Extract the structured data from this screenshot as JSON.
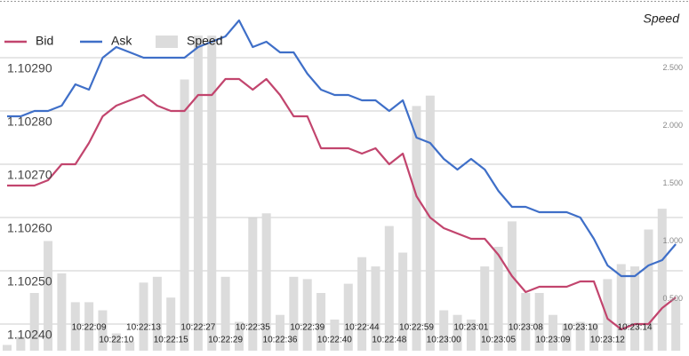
{
  "chart_data": {
    "type": "line",
    "y2_title": "Speed",
    "categories": [
      null,
      null,
      null,
      null,
      null,
      null,
      "10:22:09",
      null,
      "10:22:10",
      null,
      "10:22:13",
      null,
      "10:22:15",
      null,
      "10:22:27",
      null,
      "10:22:29",
      null,
      "10:22:35",
      null,
      "10:22:36",
      null,
      "10:22:39",
      null,
      "10:22:40",
      null,
      "10:22:44",
      null,
      "10:22:48",
      null,
      "10:22:59",
      null,
      "10:23:00",
      null,
      "10:23:01",
      null,
      "10:23:05",
      null,
      "10:23:08",
      null,
      "10:23:09",
      null,
      "10:23:10",
      null,
      "10:23:12",
      null,
      "10:23:14",
      null,
      null,
      null
    ],
    "series": [
      {
        "name": "Bid",
        "color": "#c2456e",
        "values": [
          1.10266,
          1.10266,
          1.10266,
          1.10267,
          1.1027,
          1.1027,
          1.10274,
          1.10279,
          1.10281,
          1.10282,
          1.10283,
          1.10281,
          1.1028,
          1.1028,
          1.10283,
          1.10283,
          1.10286,
          1.10286,
          1.10284,
          1.10286,
          1.10283,
          1.10279,
          1.10279,
          1.10273,
          1.10273,
          1.10273,
          1.10272,
          1.10273,
          1.1027,
          1.10272,
          1.10264,
          1.1026,
          1.10258,
          1.10257,
          1.10256,
          1.10256,
          1.10253,
          1.10249,
          1.10246,
          1.10247,
          1.10247,
          1.10247,
          1.10248,
          1.10248,
          1.10241,
          1.10239,
          1.1024,
          1.1024,
          1.10243,
          1.10245
        ]
      },
      {
        "name": "Ask",
        "color": "#3f6fc8",
        "values": [
          1.10279,
          1.10279,
          1.1028,
          1.1028,
          1.10281,
          1.10285,
          1.10284,
          1.1029,
          1.10292,
          1.10291,
          1.1029,
          1.1029,
          1.1029,
          1.1029,
          1.10292,
          1.10293,
          1.10294,
          1.10297,
          1.10292,
          1.10293,
          1.10291,
          1.10291,
          1.10287,
          1.10284,
          1.10283,
          1.10283,
          1.10282,
          1.10282,
          1.1028,
          1.10282,
          1.10275,
          1.10274,
          1.10271,
          1.10269,
          1.10271,
          1.10269,
          1.10265,
          1.10262,
          1.10262,
          1.10261,
          1.10261,
          1.10261,
          1.1026,
          1.10256,
          1.10251,
          1.10249,
          1.10249,
          1.10251,
          1.10252,
          1.10255
        ]
      },
      {
        "name": "Speed",
        "color": "#dcdcdc",
        "type": "bar",
        "axis": "y2",
        "values": [
          0.1,
          0.17,
          0.55,
          1.0,
          0.72,
          0.47,
          0.47,
          0.4,
          0.2,
          0.13,
          0.64,
          0.69,
          0.51,
          2.4,
          2.78,
          2.78,
          0.69,
          0.3,
          1.2,
          1.24,
          0.36,
          0.69,
          0.67,
          0.55,
          0.32,
          0.63,
          0.86,
          0.78,
          1.13,
          0.9,
          2.17,
          2.26,
          0.4,
          0.36,
          0.32,
          0.78,
          0.95,
          1.17,
          0.55,
          0.55,
          0.36,
          0.28,
          0.3,
          0.28,
          0.67,
          0.8,
          0.78,
          1.1,
          1.28,
          0.49
        ]
      }
    ],
    "ylim": [
      1.10235,
      1.103
    ],
    "yticks": [
      {
        "value": 1.1024,
        "label": "1.10240"
      },
      {
        "value": 1.1025,
        "label": "1.10250"
      },
      {
        "value": 1.1026,
        "label": "1.10260"
      },
      {
        "value": 1.1027,
        "label": "1.10270"
      },
      {
        "value": 1.1028,
        "label": "1.10280"
      },
      {
        "value": 1.1029,
        "label": "1.10290"
      }
    ],
    "y2lim": [
      0.05,
      3.05
    ],
    "y2ticks": [
      {
        "value": 0.5,
        "label": "0.500"
      },
      {
        "value": 1,
        "label": "1.000"
      },
      {
        "value": 1.5,
        "label": "1.500"
      },
      {
        "value": 2,
        "label": "2.000"
      },
      {
        "value": 2.5,
        "label": "2.500"
      }
    ],
    "grid": true
  }
}
